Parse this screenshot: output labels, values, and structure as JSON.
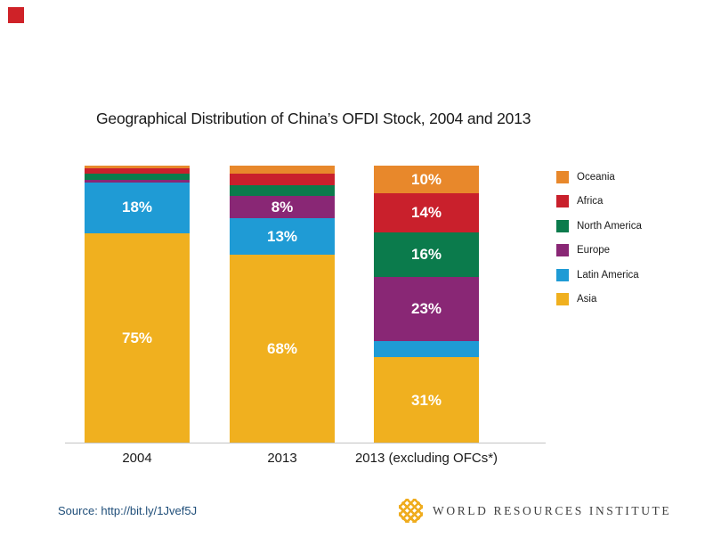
{
  "title": "Geographical Distribution of China’s OFDI Stock, 2004 and 2013",
  "chart_data": {
    "type": "bar",
    "stacked": true,
    "title": "Geographical Distribution of China’s OFDI Stock, 2004 and 2013",
    "categories": [
      "2004",
      "2013",
      "2013 (excluding OFCs*)"
    ],
    "series": [
      {
        "name": "Oceania",
        "color": "#e8882b",
        "values": [
          1,
          3,
          10
        ],
        "labels": [
          "",
          "",
          "10%"
        ]
      },
      {
        "name": "Africa",
        "color": "#c9202c",
        "values": [
          2,
          4,
          14
        ],
        "labels": [
          "",
          "",
          "14%"
        ]
      },
      {
        "name": "North America",
        "color": "#0b7b4c",
        "values": [
          2,
          4,
          16
        ],
        "labels": [
          "",
          "",
          "16%"
        ]
      },
      {
        "name": "Europe",
        "color": "#892775",
        "values": [
          1,
          8,
          23
        ],
        "labels": [
          "",
          "8%",
          "23%"
        ]
      },
      {
        "name": "Latin America",
        "color": "#1f9bd5",
        "values": [
          18,
          13,
          6
        ],
        "labels": [
          "18%",
          "13%",
          ""
        ]
      },
      {
        "name": "Asia",
        "color": "#f0b01f",
        "values": [
          75,
          68,
          31
        ],
        "labels": [
          "75%",
          "68%",
          "31%"
        ]
      }
    ],
    "ylim": [
      0,
      100
    ],
    "unit": "%",
    "grid": false,
    "legend_position": "right"
  },
  "footer": {
    "source_label": "Source: http://bit.ly/1Jvef5J",
    "logo_text": "WORLD RESOURCES INSTITUTE"
  },
  "colors": {
    "axis_line": "#c3c3c3",
    "source_link": "#1f4e79",
    "wri_gold": "#efac1e",
    "red_marker": "#cf2228"
  }
}
